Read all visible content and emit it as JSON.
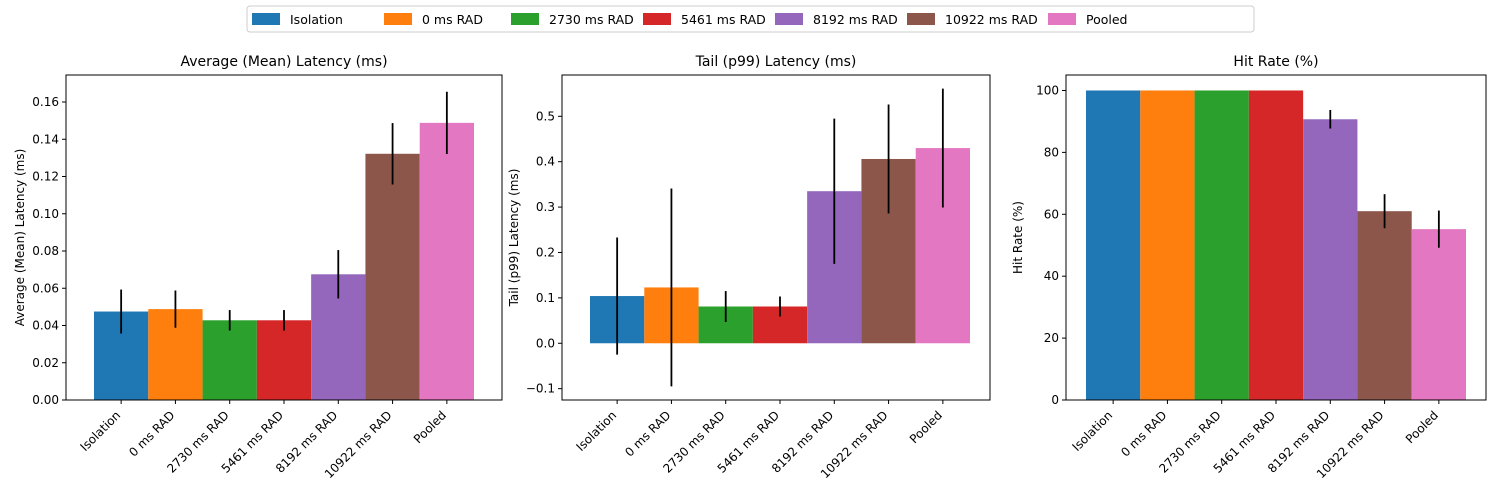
{
  "legend": {
    "location": "top-center",
    "entries": [
      "Isolation",
      "0 ms RAD",
      "2730 ms RAD",
      "5461 ms RAD",
      "8192 ms RAD",
      "10922 ms RAD",
      "Pooled"
    ]
  },
  "colors": [
    "#1f77b4",
    "#ff7f0e",
    "#2ca02c",
    "#d62728",
    "#9467bd",
    "#8c564b",
    "#e377c2"
  ],
  "chart_data": [
    {
      "type": "bar",
      "title": "Average (Mean) Latency (ms)",
      "ylabel": "Average (Mean) Latency (ms)",
      "categories": [
        "Isolation",
        "0 ms RAD",
        "2730 ms RAD",
        "5461 ms RAD",
        "8192 ms RAD",
        "10922 ms RAD",
        "Pooled"
      ],
      "values": [
        0.0475,
        0.0488,
        0.0428,
        0.0428,
        0.0675,
        0.1322,
        0.1488
      ],
      "errors": [
        0.0118,
        0.01,
        0.0055,
        0.0055,
        0.013,
        0.0165,
        0.0167
      ],
      "ylim": [
        0,
        0.1745
      ],
      "yticks": [
        0,
        0.02,
        0.04,
        0.06,
        0.08,
        0.1,
        0.12,
        0.14,
        0.16
      ],
      "ytick_labels": [
        "0.00",
        "0.02",
        "0.04",
        "0.06",
        "0.08",
        "0.10",
        "0.12",
        "0.14",
        "0.16"
      ]
    },
    {
      "type": "bar",
      "title": "Tail (p99) Latency (ms)",
      "ylabel": "Tail (p99) Latency (ms)",
      "categories": [
        "Isolation",
        "0 ms RAD",
        "2730 ms RAD",
        "5461 ms RAD",
        "8192 ms RAD",
        "10922 ms RAD",
        "Pooled"
      ],
      "values": [
        0.104,
        0.123,
        0.081,
        0.081,
        0.335,
        0.406,
        0.43
      ],
      "errors": [
        0.129,
        0.218,
        0.034,
        0.022,
        0.16,
        0.12,
        0.131
      ],
      "ylim": [
        -0.125,
        0.591
      ],
      "yticks": [
        -0.1,
        0,
        0.1,
        0.2,
        0.3,
        0.4,
        0.5
      ],
      "ytick_labels": [
        "−0.1",
        "0.0",
        "0.1",
        "0.2",
        "0.3",
        "0.4",
        "0.5"
      ]
    },
    {
      "type": "bar",
      "title": "Hit Rate (%)",
      "ylabel": "Hit Rate (%)",
      "categories": [
        "Isolation",
        "0 ms RAD",
        "2730 ms RAD",
        "5461 ms RAD",
        "8192 ms RAD",
        "10922 ms RAD",
        "Pooled"
      ],
      "values": [
        100,
        100,
        100,
        100,
        90.7,
        61.0,
        55.2
      ],
      "errors": [
        0,
        0,
        0,
        0,
        3.0,
        5.5,
        6.0
      ],
      "ylim": [
        0,
        105
      ],
      "yticks": [
        0,
        20,
        40,
        60,
        80,
        100
      ],
      "ytick_labels": [
        "0",
        "20",
        "40",
        "60",
        "80",
        "100"
      ]
    }
  ]
}
